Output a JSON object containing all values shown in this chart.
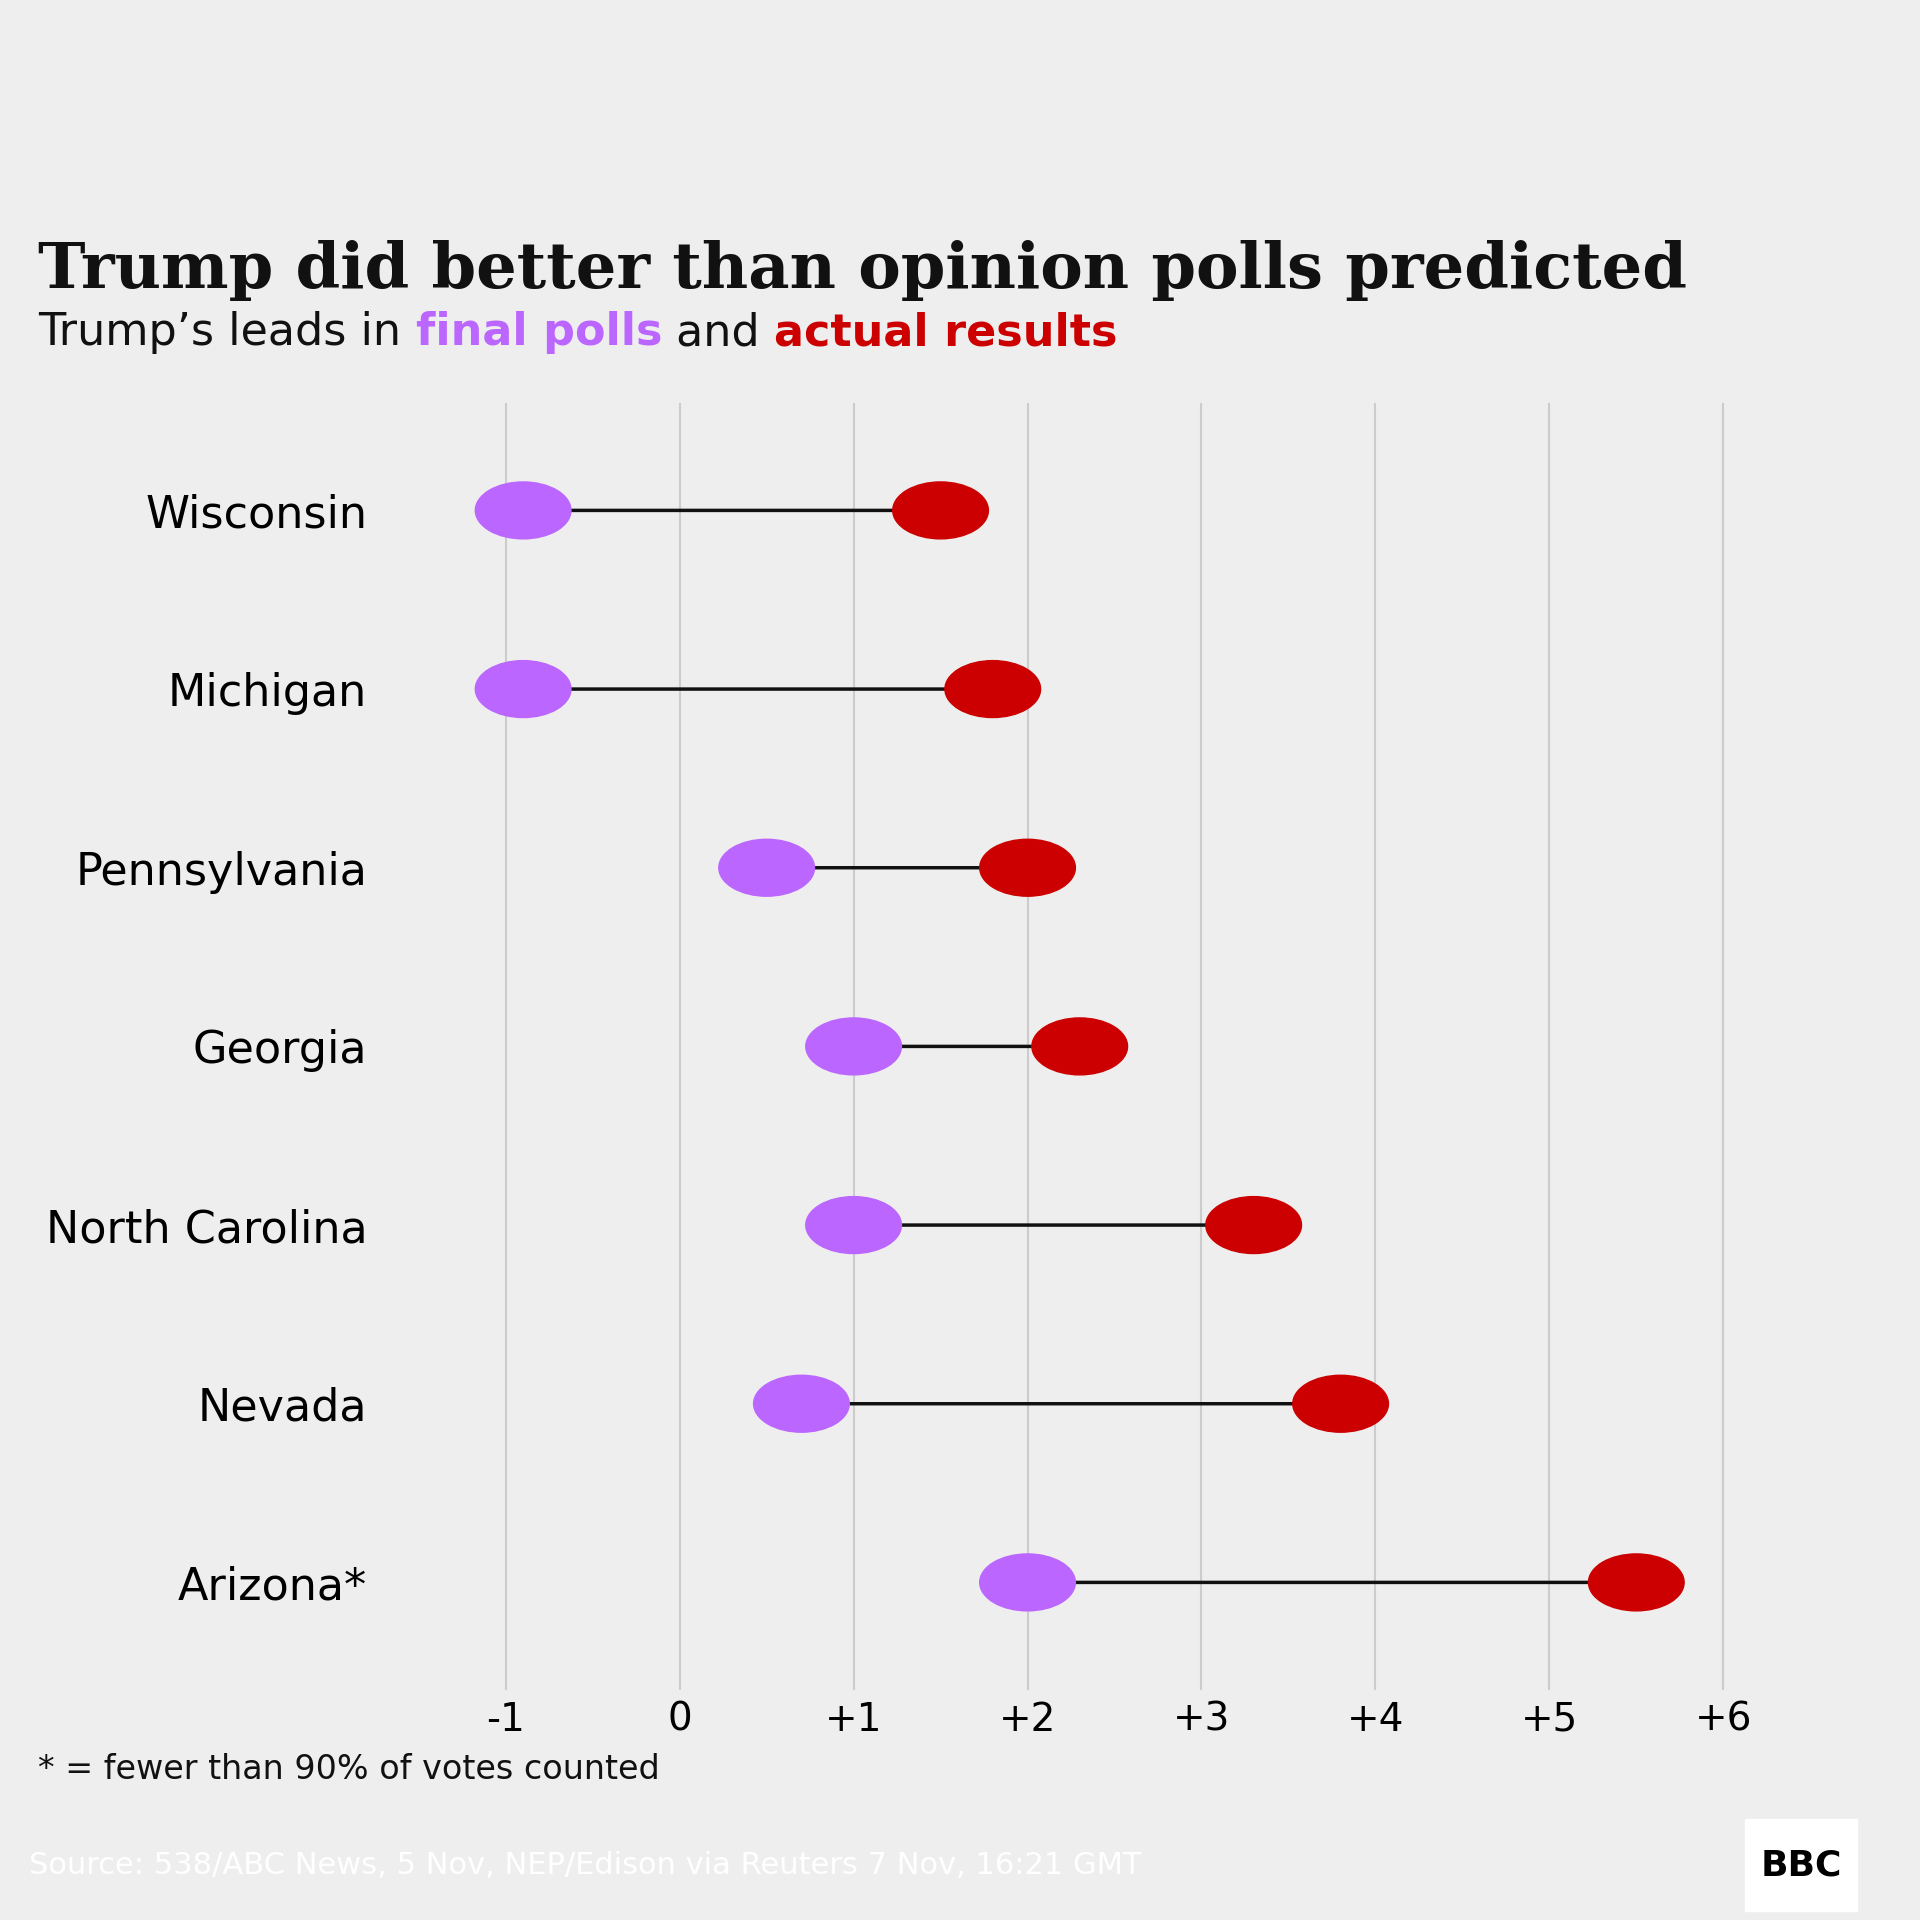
{
  "title": "Trump did better than opinion polls predicted",
  "subtitle_plain": "Trump’s leads in ",
  "subtitle_final_polls": "final polls",
  "subtitle_and": " and ",
  "subtitle_actual": "actual results",
  "states": [
    "Wisconsin",
    "Michigan",
    "Pennsylvania",
    "Georgia",
    "North Carolina",
    "Nevada",
    "Arizona*"
  ],
  "poll_values": [
    -0.9,
    -0.9,
    0.5,
    1.0,
    1.0,
    0.7,
    2.0
  ],
  "result_values": [
    1.5,
    1.8,
    2.0,
    2.3,
    3.3,
    3.8,
    5.5
  ],
  "poll_color": "#bb66ff",
  "result_color": "#cc0000",
  "arrow_color": "#111111",
  "background_color": "#eeeeee",
  "xlim": [
    -1.7,
    6.8
  ],
  "xticks": [
    -1,
    0,
    1,
    2,
    3,
    4,
    5,
    6
  ],
  "xtick_labels": [
    "-1",
    "0",
    "+1",
    "+2",
    "+3",
    "+4",
    "+5",
    "+6"
  ],
  "footnote": "* = fewer than 90% of votes counted",
  "source": "Source: 538/ABC News, 5 Nov, NEP/Edison via Reuters 7 Nov, 16:21 GMT",
  "title_fontsize": 46,
  "subtitle_fontsize": 32,
  "state_fontsize": 32,
  "xtick_fontsize": 28,
  "footnote_fontsize": 24,
  "source_fontsize": 22,
  "bbc_fontsize": 26
}
